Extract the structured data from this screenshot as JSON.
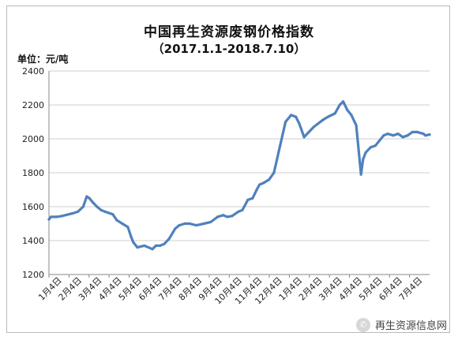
{
  "chart_data": {
    "type": "line",
    "title": "中国再生资源废钢价格指数",
    "subtitle": "（2017.1.1-2018.7.10）",
    "ylabel": "单位：元/吨",
    "xlabel": "",
    "ylim": [
      1200,
      2400
    ],
    "yticks": [
      1200,
      1400,
      1600,
      1800,
      2000,
      2200,
      2400
    ],
    "x_tick_labels": [
      "1月4日",
      "2月4日",
      "3月4日",
      "4月4日",
      "5月4日",
      "6月4日",
      "7月4日",
      "8月4日",
      "9月4日",
      "10月4日",
      "11月4日",
      "12月4日",
      "1月4日",
      "2月4日",
      "3月4日",
      "4月4日",
      "5月4日",
      "6月4日",
      "7月4日"
    ],
    "grid": true,
    "legend": "none",
    "line_color": "#4f81bd",
    "series": [
      {
        "name": "",
        "x": [
          "2017-01-01",
          "2017-01-04",
          "2017-01-12",
          "2017-01-20",
          "2017-02-04",
          "2017-02-12",
          "2017-02-20",
          "2017-02-25",
          "2017-03-01",
          "2017-03-06",
          "2017-03-12",
          "2017-03-18",
          "2017-03-24",
          "2017-04-04",
          "2017-04-10",
          "2017-04-18",
          "2017-04-26",
          "2017-05-01",
          "2017-05-04",
          "2017-05-10",
          "2017-05-20",
          "2017-06-01",
          "2017-06-06",
          "2017-06-12",
          "2017-06-18",
          "2017-06-25",
          "2017-07-04",
          "2017-07-10",
          "2017-07-18",
          "2017-07-25",
          "2017-08-04",
          "2017-08-15",
          "2017-08-25",
          "2017-09-04",
          "2017-09-12",
          "2017-09-18",
          "2017-09-25",
          "2017-10-04",
          "2017-10-10",
          "2017-10-18",
          "2017-10-25",
          "2017-10-31",
          "2017-11-04",
          "2017-11-10",
          "2017-11-18",
          "2017-11-25",
          "2017-12-04",
          "2017-12-12",
          "2017-12-20",
          "2017-12-27",
          "2018-01-01",
          "2018-01-08",
          "2018-01-15",
          "2018-01-22",
          "2018-02-04",
          "2018-02-12",
          "2018-02-22",
          "2018-03-01",
          "2018-03-06",
          "2018-03-12",
          "2018-03-18",
          "2018-03-25",
          "2018-04-01",
          "2018-04-04",
          "2018-04-08",
          "2018-04-15",
          "2018-04-22",
          "2018-05-04",
          "2018-05-10",
          "2018-05-18",
          "2018-05-25",
          "2018-06-01",
          "2018-06-08",
          "2018-06-15",
          "2018-06-22",
          "2018-07-01",
          "2018-07-04",
          "2018-07-10"
        ],
        "values": [
          1525,
          1540,
          1540,
          1545,
          1560,
          1570,
          1600,
          1660,
          1650,
          1625,
          1600,
          1580,
          1570,
          1555,
          1520,
          1500,
          1480,
          1420,
          1390,
          1360,
          1370,
          1350,
          1370,
          1370,
          1380,
          1410,
          1470,
          1490,
          1500,
          1500,
          1490,
          1500,
          1510,
          1540,
          1550,
          1540,
          1545,
          1570,
          1580,
          1640,
          1650,
          1700,
          1730,
          1740,
          1760,
          1800,
          1960,
          2100,
          2140,
          2130,
          2090,
          2010,
          2040,
          2070,
          2110,
          2130,
          2150,
          2200,
          2220,
          2170,
          2140,
          2080,
          1790,
          1880,
          1920,
          1950,
          1960,
          2020,
          2030,
          2020,
          2030,
          2010,
          2020,
          2040,
          2040,
          2030,
          2020,
          2025
        ]
      }
    ]
  },
  "watermark": {
    "text": "再生资源信息网",
    "icon": "wechat-icon"
  }
}
